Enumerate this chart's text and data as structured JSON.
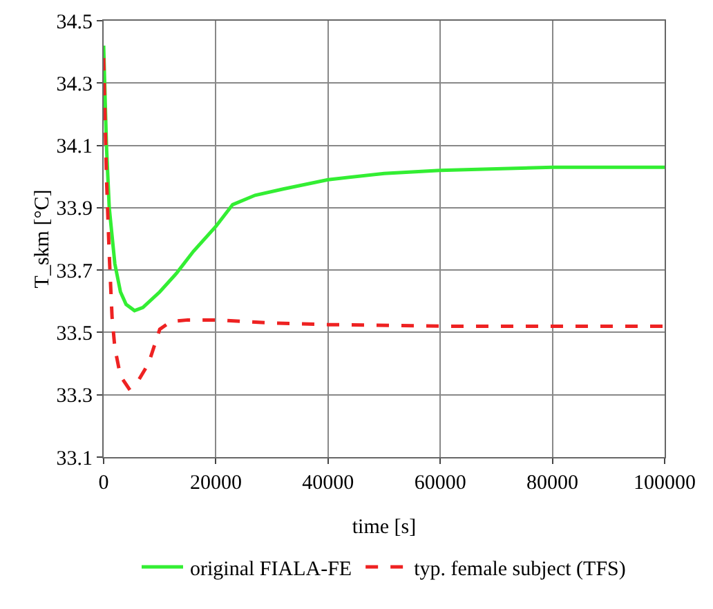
{
  "chart_data": {
    "type": "line",
    "xlabel": "time [s]",
    "ylabel": "T_skm [°C]",
    "xlim": [
      0,
      100000
    ],
    "xticks": [
      0,
      20000,
      40000,
      60000,
      80000,
      100000
    ],
    "ylim": [
      33.1,
      34.5
    ],
    "yticks": [
      33.1,
      33.3,
      33.5,
      33.7,
      33.9,
      34.1,
      34.3,
      34.5
    ],
    "grid": true,
    "legend": "bottom",
    "marker": "none",
    "series": [
      {
        "name": "original FIALA-FE",
        "color": "#33ee33",
        "line_style": "solid",
        "x": [
          0,
          500,
          1000,
          2000,
          3000,
          4000,
          5500,
          7000,
          10000,
          13000,
          16000,
          20000,
          23000,
          27000,
          32000,
          40000,
          50000,
          60000,
          80000,
          100000
        ],
        "values": [
          34.42,
          34.1,
          33.9,
          33.72,
          33.63,
          33.59,
          33.57,
          33.58,
          33.63,
          33.69,
          33.76,
          33.84,
          33.91,
          33.94,
          33.96,
          33.99,
          34.01,
          34.02,
          34.03,
          34.03
        ]
      },
      {
        "name": "typ. female subject (TFS)",
        "color": "#ee2222",
        "line_style": "dashed",
        "x": [
          0,
          500,
          1000,
          1500,
          2000,
          3000,
          4500,
          6000,
          8000,
          10000,
          12000,
          15000,
          20000,
          30000,
          40000,
          60000,
          100000
        ],
        "values": [
          34.38,
          34.0,
          33.75,
          33.55,
          33.45,
          33.36,
          33.32,
          33.34,
          33.4,
          33.51,
          33.535,
          33.54,
          33.54,
          33.53,
          33.525,
          33.52,
          33.52
        ]
      }
    ]
  }
}
